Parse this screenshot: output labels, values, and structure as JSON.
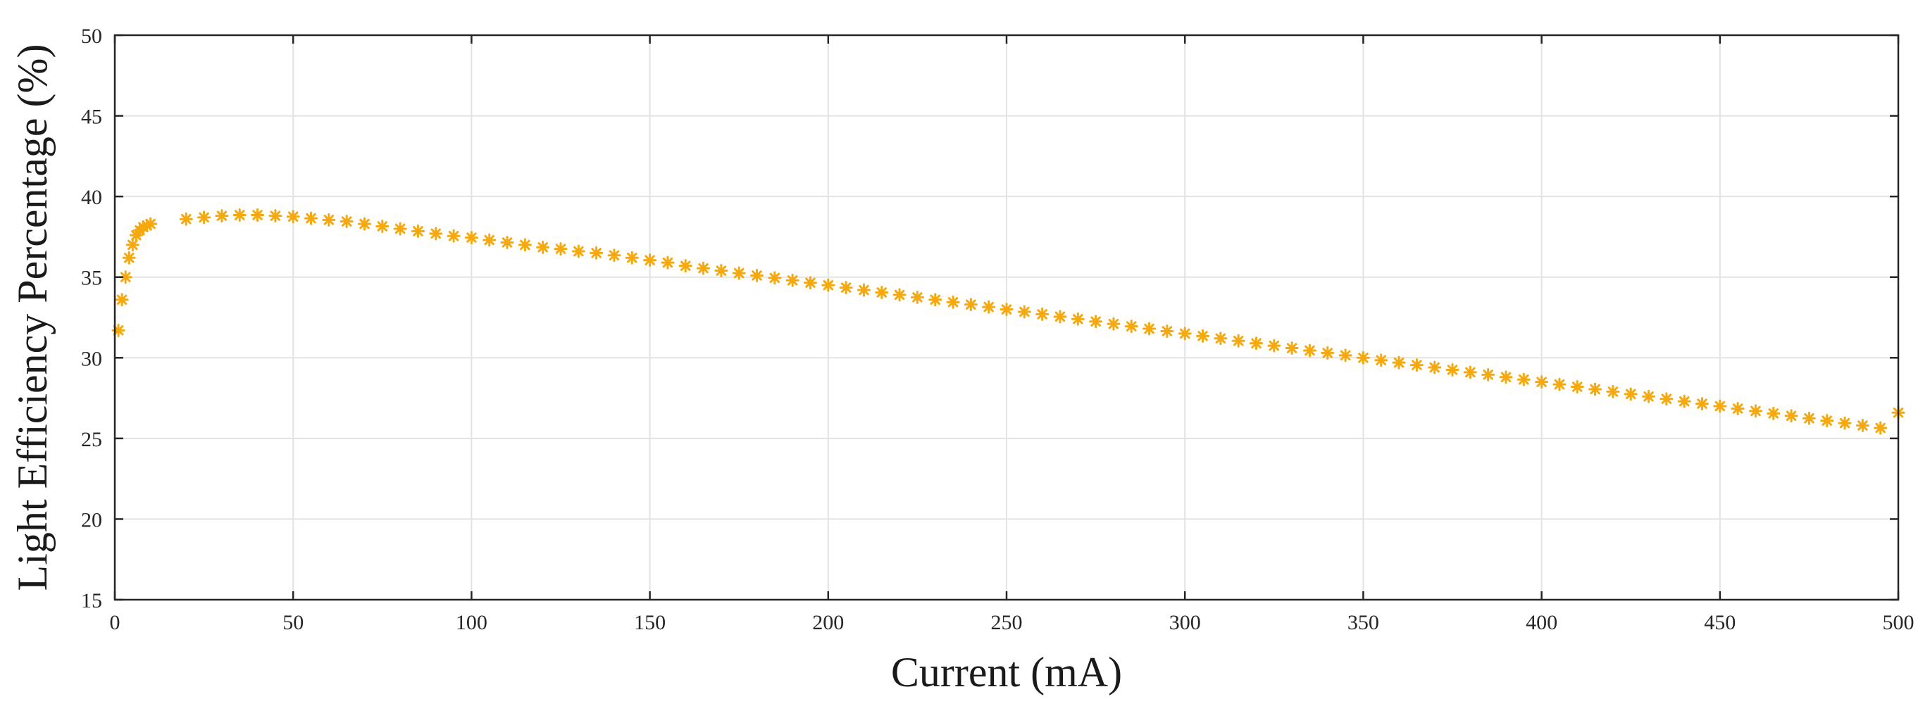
{
  "chart_data": {
    "type": "scatter",
    "title": "",
    "xlabel": "Current (mA)",
    "ylabel": "Light Efficiency Percentage (%)",
    "xlim": [
      0,
      500
    ],
    "ylim": [
      15,
      50
    ],
    "xticks": [
      0,
      50,
      100,
      150,
      200,
      250,
      300,
      350,
      400,
      450,
      500
    ],
    "yticks": [
      15,
      20,
      25,
      30,
      35,
      40,
      45,
      50
    ],
    "grid": true,
    "marker": "asterisk",
    "marker_color": "#F5A90F",
    "series": [
      {
        "x": [
          1,
          2,
          3,
          4,
          5,
          6,
          7,
          8,
          9,
          10,
          20,
          25,
          30,
          35,
          40,
          45,
          50,
          55,
          60,
          65,
          70,
          75,
          80,
          85,
          90,
          95,
          100,
          105,
          110,
          115,
          120,
          125,
          130,
          135,
          140,
          145,
          150,
          155,
          160,
          165,
          170,
          175,
          180,
          185,
          190,
          195,
          200,
          205,
          210,
          215,
          220,
          225,
          230,
          235,
          240,
          245,
          250,
          255,
          260,
          265,
          270,
          275,
          280,
          285,
          290,
          295,
          300,
          305,
          310,
          315,
          320,
          325,
          330,
          335,
          340,
          345,
          350,
          355,
          360,
          365,
          370,
          375,
          380,
          385,
          390,
          395,
          400,
          405,
          410,
          415,
          420,
          425,
          430,
          435,
          440,
          445,
          450,
          455,
          460,
          465,
          470,
          475,
          480,
          485,
          490,
          495,
          500
        ],
        "y": [
          31.7,
          33.6,
          35.0,
          36.2,
          37.0,
          37.6,
          37.9,
          38.1,
          38.2,
          38.3,
          38.6,
          38.7,
          38.8,
          38.85,
          38.85,
          38.8,
          38.75,
          38.65,
          38.55,
          38.45,
          38.3,
          38.15,
          38.0,
          37.85,
          37.7,
          37.55,
          37.45,
          37.3,
          37.15,
          37.0,
          36.85,
          36.75,
          36.6,
          36.5,
          36.35,
          36.2,
          36.05,
          35.9,
          35.7,
          35.55,
          35.4,
          35.25,
          35.1,
          34.95,
          34.8,
          34.65,
          34.5,
          34.35,
          34.2,
          34.05,
          33.9,
          33.75,
          33.6,
          33.45,
          33.3,
          33.15,
          33.0,
          32.85,
          32.7,
          32.55,
          32.4,
          32.25,
          32.1,
          31.95,
          31.8,
          31.65,
          31.5,
          31.35,
          31.2,
          31.05,
          30.9,
          30.75,
          30.6,
          30.45,
          30.3,
          30.15,
          30.0,
          29.85,
          29.7,
          29.55,
          29.4,
          29.25,
          29.1,
          28.95,
          28.8,
          28.65,
          28.5,
          28.35,
          28.2,
          28.05,
          27.9,
          27.75,
          27.6,
          27.45,
          27.3,
          27.15,
          27.0,
          26.85,
          26.7,
          26.55,
          26.4,
          26.25,
          26.1,
          25.95,
          25.8,
          25.65,
          26.6
        ]
      }
    ]
  }
}
